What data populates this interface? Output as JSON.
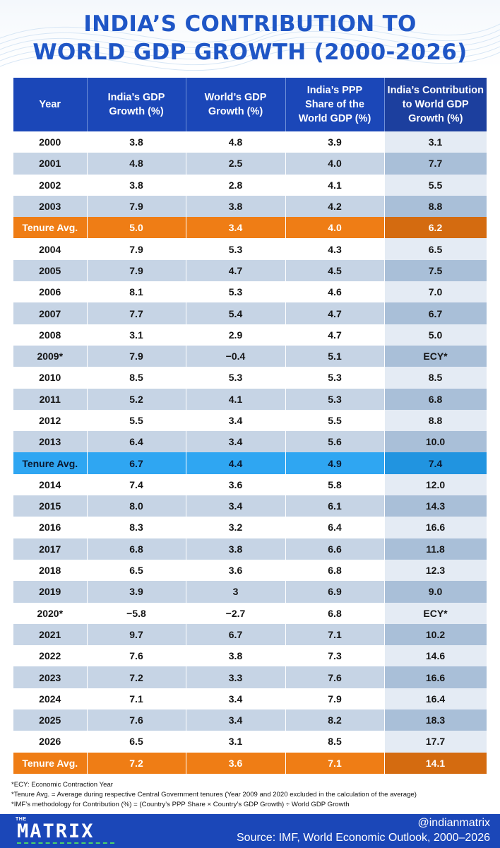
{
  "title": {
    "line1": "INDIA’S CONTRIBUTION TO",
    "line2": "WORLD GDP GROWTH (2000-2026)"
  },
  "chart_data": {
    "type": "table",
    "columns": [
      "Year",
      "India’s GDP Growth (%)",
      "World’s GDP Growth (%)",
      "India’s PPP Share of the World GDP (%)",
      "India’s Contribution to World GDP Growth (%)"
    ],
    "header_lines": [
      [
        "Year"
      ],
      [
        "India’s GDP",
        "Growth (%)"
      ],
      [
        "World’s GDP",
        "Growth (%)"
      ],
      [
        "India’s PPP",
        "Share of the",
        "World GDP (%)"
      ],
      [
        "India’s Contribution",
        "to World GDP",
        "Growth (%)"
      ]
    ],
    "rows": [
      {
        "style": "odd",
        "cells": [
          "2000",
          "3.8",
          "4.8",
          "3.9",
          "3.1"
        ]
      },
      {
        "style": "even",
        "cells": [
          "2001",
          "4.8",
          "2.5",
          "4.0",
          "7.7"
        ]
      },
      {
        "style": "odd",
        "cells": [
          "2002",
          "3.8",
          "2.8",
          "4.1",
          "5.5"
        ]
      },
      {
        "style": "even",
        "cells": [
          "2003",
          "7.9",
          "3.8",
          "4.2",
          "8.8"
        ]
      },
      {
        "style": "orange",
        "cells": [
          "Tenure Avg.",
          "5.0",
          "3.4",
          "4.0",
          "6.2"
        ]
      },
      {
        "style": "odd",
        "cells": [
          "2004",
          "7.9",
          "5.3",
          "4.3",
          "6.5"
        ]
      },
      {
        "style": "even",
        "cells": [
          "2005",
          "7.9",
          "4.7",
          "4.5",
          "7.5"
        ]
      },
      {
        "style": "odd",
        "cells": [
          "2006",
          "8.1",
          "5.3",
          "4.6",
          "7.0"
        ]
      },
      {
        "style": "even",
        "cells": [
          "2007",
          "7.7",
          "5.4",
          "4.7",
          "6.7"
        ]
      },
      {
        "style": "odd",
        "cells": [
          "2008",
          "3.1",
          "2.9",
          "4.7",
          "5.0"
        ]
      },
      {
        "style": "even",
        "cells": [
          "2009*",
          "7.9",
          "−0.4",
          "5.1",
          "ECY*"
        ]
      },
      {
        "style": "odd",
        "cells": [
          "2010",
          "8.5",
          "5.3",
          "5.3",
          "8.5"
        ]
      },
      {
        "style": "even",
        "cells": [
          "2011",
          "5.2",
          "4.1",
          "5.3",
          "6.8"
        ]
      },
      {
        "style": "odd",
        "cells": [
          "2012",
          "5.5",
          "3.4",
          "5.5",
          "8.8"
        ]
      },
      {
        "style": "even",
        "cells": [
          "2013",
          "6.4",
          "3.4",
          "5.6",
          "10.0"
        ]
      },
      {
        "style": "blue",
        "cells": [
          "Tenure Avg.",
          "6.7",
          "4.4",
          "4.9",
          "7.4"
        ]
      },
      {
        "style": "odd",
        "cells": [
          "2014",
          "7.4",
          "3.6",
          "5.8",
          "12.0"
        ]
      },
      {
        "style": "even",
        "cells": [
          "2015",
          "8.0",
          "3.4",
          "6.1",
          "14.3"
        ]
      },
      {
        "style": "odd",
        "cells": [
          "2016",
          "8.3",
          "3.2",
          "6.4",
          "16.6"
        ]
      },
      {
        "style": "even",
        "cells": [
          "2017",
          "6.8",
          "3.8",
          "6.6",
          "11.8"
        ]
      },
      {
        "style": "odd",
        "cells": [
          "2018",
          "6.5",
          "3.6",
          "6.8",
          "12.3"
        ]
      },
      {
        "style": "even",
        "cells": [
          "2019",
          "3.9",
          "3",
          "6.9",
          "9.0"
        ]
      },
      {
        "style": "odd",
        "cells": [
          "2020*",
          "−5.8",
          "−2.7",
          "6.8",
          "ECY*"
        ]
      },
      {
        "style": "even",
        "cells": [
          "2021",
          "9.7",
          "6.7",
          "7.1",
          "10.2"
        ]
      },
      {
        "style": "odd",
        "cells": [
          "2022",
          "7.6",
          "3.8",
          "7.3",
          "14.6"
        ]
      },
      {
        "style": "even",
        "cells": [
          "2023",
          "7.2",
          "3.3",
          "7.6",
          "16.6"
        ]
      },
      {
        "style": "odd",
        "cells": [
          "2024",
          "7.1",
          "3.4",
          "7.9",
          "16.4"
        ]
      },
      {
        "style": "even",
        "cells": [
          "2025",
          "7.6",
          "3.4",
          "8.2",
          "18.3"
        ]
      },
      {
        "style": "odd",
        "cells": [
          "2026",
          "6.5",
          "3.1",
          "8.5",
          "17.7"
        ]
      },
      {
        "style": "orange",
        "cells": [
          "Tenure Avg.",
          "7.2",
          "3.6",
          "7.1",
          "14.1"
        ]
      }
    ]
  },
  "notes": [
    "*ECY: Economic Contraction Year",
    "*Tenure Avg. = Average during respective Central Government tenures (Year 2009 and 2020 excluded in the calculation of the average)",
    "*IMF’s methodology for Contribution (%) = (Country’s PPP Share × Country’s GDP Growth) ÷ World GDP Growth"
  ],
  "footer": {
    "logo_small": "THE",
    "logo_word": "MATRIX",
    "handle": "@indianmatrix",
    "source": "Source: IMF, World Economic Outlook, 2000–2026"
  },
  "colors": {
    "title": "#1f56c6",
    "header_bg": "#1b47b8",
    "row_even": "#c6d4e5",
    "highlight_orange": "#ef7d15",
    "highlight_blue": "#2fa6f2",
    "footer_bg": "#1b47b8",
    "logo_accent": "#4ad36b"
  }
}
